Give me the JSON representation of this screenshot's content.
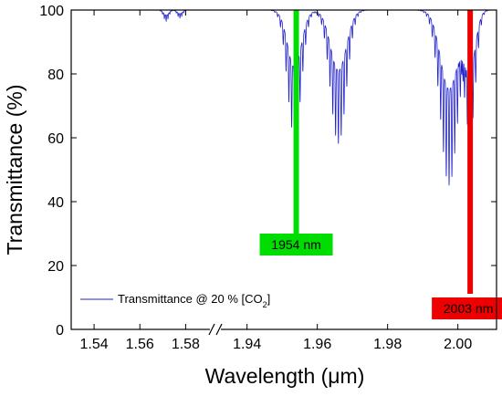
{
  "chart_data": {
    "type": "line",
    "xlabel_prefix": "Wavelength (",
    "xlabel_mu": "μ",
    "xlabel_suffix": "m)",
    "ylabel": "Transmittance (%)",
    "ylim": [
      0,
      100
    ],
    "yticks": [
      0,
      20,
      40,
      60,
      80,
      100
    ],
    "x_axis_broken": true,
    "x_segments": [
      {
        "xlim": [
          1.53,
          1.593
        ],
        "ticks": [
          1.54,
          1.56,
          1.58
        ],
        "tick_labels": [
          "1.54",
          "1.56",
          "1.58"
        ]
      },
      {
        "xlim": [
          1.931,
          2.011
        ],
        "ticks": [
          1.94,
          1.96,
          1.98,
          2.0
        ],
        "tick_labels": [
          "1.94",
          "1.96",
          "1.98",
          "2.00"
        ]
      }
    ],
    "series": [
      {
        "name_prefix": "Transmittance @ 20 % [CO",
        "name_sub": "2",
        "name_suffix": "]",
        "color": "#2222cc",
        "bands": [
          {
            "center": 1.5715,
            "width": 0.0016,
            "depth": 3.5
          },
          {
            "center": 1.5775,
            "width": 0.0016,
            "depth": 2.5
          },
          {
            "center": 1.9535,
            "width": 0.0028,
            "depth": 40
          },
          {
            "center": 1.966,
            "width": 0.0032,
            "depth": 42
          },
          {
            "center": 1.9975,
            "width": 0.0035,
            "depth": 55
          },
          {
            "center": 2.0035,
            "width": 0.0022,
            "depth": 38
          }
        ],
        "line_spacing": 0.0008
      }
    ],
    "markers": [
      {
        "label": "1954 nm",
        "x": 1.954,
        "color": "#00dd00"
      },
      {
        "label": "2003 nm",
        "x": 2.0035,
        "color": "#ee0000"
      }
    ],
    "legend_position": "lower-left",
    "grid": false
  }
}
